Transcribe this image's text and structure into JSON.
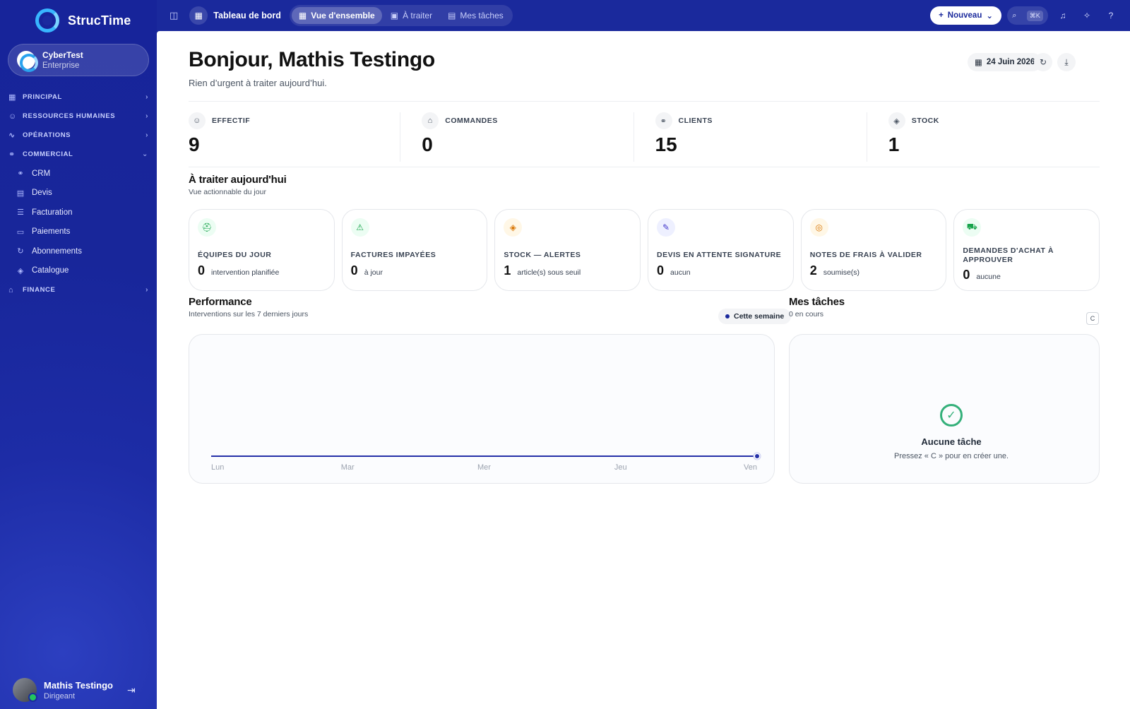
{
  "brand": {
    "name": "StrucTime"
  },
  "org": {
    "name": "CyberTest",
    "plan": "Enterprise"
  },
  "nav": {
    "sections": [
      {
        "label": "PRINCIPAL",
        "icon": "grid-icon"
      },
      {
        "label": "RESSOURCES HUMAINES",
        "icon": "users-icon"
      },
      {
        "label": "OPÉRATIONS",
        "icon": "activity-icon"
      },
      {
        "label": "COMMERCIAL",
        "icon": "handshake-icon"
      }
    ],
    "commercial_items": [
      {
        "label": "CRM",
        "icon": "handshake-icon"
      },
      {
        "label": "Devis",
        "icon": "document-icon"
      },
      {
        "label": "Facturation",
        "icon": "invoice-icon"
      },
      {
        "label": "Paiements",
        "icon": "cash-icon"
      },
      {
        "label": "Abonnements",
        "icon": "refresh-icon"
      },
      {
        "label": "Catalogue",
        "icon": "box-icon"
      }
    ],
    "finance": {
      "label": "FINANCE",
      "icon": "bank-icon"
    }
  },
  "user": {
    "name": "Mathis Testingo",
    "role": "Dirigeant"
  },
  "topbar": {
    "title": "Tableau de bord",
    "tabs": [
      {
        "label": "Vue d'ensemble"
      },
      {
        "label": "À traiter"
      },
      {
        "label": "Mes tâches"
      }
    ],
    "new_label": "Nouveau",
    "shortcut": "⌘K"
  },
  "header": {
    "greeting": "Bonjour, Mathis Testingo",
    "subtitle": "Rien d’urgent à traiter aujourd’hui.",
    "date": "24 Juin 2026"
  },
  "kpis": [
    {
      "label": "EFFECTIF",
      "value": "9"
    },
    {
      "label": "COMMANDES",
      "value": "0"
    },
    {
      "label": "CLIENTS",
      "value": "15"
    },
    {
      "label": "STOCK",
      "value": "1"
    }
  ],
  "today": {
    "title": "À traiter aujourd'hui",
    "subtitle": "Vue actionnable du jour",
    "cards": [
      {
        "label": "ÉQUIPES DU JOUR",
        "value": "0",
        "note": "intervention planifiée",
        "color": "#16a34a",
        "bg": "#ecfdf3"
      },
      {
        "label": "FACTURES IMPAYÉES",
        "value": "0",
        "note": "à jour",
        "color": "#16a34a",
        "bg": "#ecfdf3"
      },
      {
        "label": "STOCK — ALERTES",
        "value": "1",
        "note": "article(s) sous seuil",
        "color": "#d97706",
        "bg": "#fff7e6"
      },
      {
        "label": "DEVIS EN ATTENTE SIGNATURE",
        "value": "0",
        "note": "aucun",
        "color": "#4338ca",
        "bg": "#eef0ff"
      },
      {
        "label": "NOTES DE FRAIS À VALIDER",
        "value": "2",
        "note": "soumise(s)",
        "color": "#d97706",
        "bg": "#fff7e6"
      },
      {
        "label": "DEMANDES D'ACHAT À APPROUVER",
        "value": "0",
        "note": "aucune",
        "color": "#16a34a",
        "bg": "#ecfdf3"
      }
    ]
  },
  "performance": {
    "title": "Performance",
    "subtitle": "Interventions sur les 7 derniers jours",
    "badge": "Cette semaine"
  },
  "chart_data": {
    "type": "line",
    "categories": [
      "Lun",
      "Mar",
      "Mer",
      "Jeu",
      "Ven"
    ],
    "series": [
      {
        "values": [
          0,
          0,
          0,
          0,
          0
        ]
      }
    ],
    "title": "",
    "xlabel": "",
    "ylabel": "",
    "grid": false,
    "color": "#2530a8"
  },
  "tasks": {
    "title": "Mes tâches",
    "subtitle": "0 en cours",
    "key": "C",
    "empty_title": "Aucune tâche",
    "empty_sub": "Pressez « C » pour en créer une."
  }
}
